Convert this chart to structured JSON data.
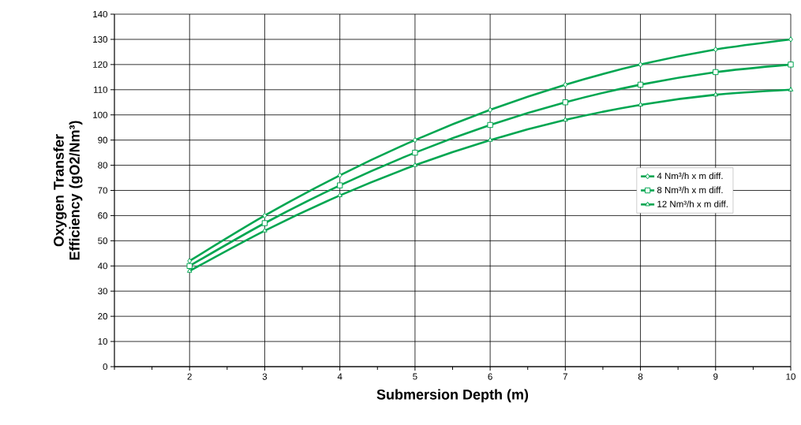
{
  "chart_data": {
    "type": "line",
    "xlabel": "Submersion Depth (m)",
    "ylabel": "Oxygen Transfer Efficiency (gO2/Nm³)",
    "x": [
      2,
      3,
      4,
      5,
      6,
      7,
      8,
      9,
      10
    ],
    "series": [
      {
        "name": "4 Nm³/h x m diff.",
        "color": "#00a651",
        "marker": "diamond",
        "values": [
          42,
          60,
          76,
          90,
          102,
          112,
          120,
          126,
          130
        ]
      },
      {
        "name": "8 Nm³/h x m diff.",
        "color": "#00a651",
        "marker": "square",
        "values": [
          40,
          57,
          72,
          85,
          96,
          105,
          112,
          117,
          120
        ]
      },
      {
        "name": "12 Nm³/h x m diff.",
        "color": "#00a651",
        "marker": "triangle",
        "values": [
          38,
          54,
          68,
          80,
          90,
          98,
          104,
          108,
          110
        ]
      }
    ],
    "xlim": [
      1,
      10
    ],
    "xticks": [
      {
        "value": 1,
        "label": null
      },
      {
        "value": 1.5,
        "label": null
      },
      2,
      {
        "value": 2.5,
        "label": null
      },
      3,
      {
        "value": 3.5,
        "label": null
      },
      4,
      {
        "value": 4.5,
        "label": null
      },
      5,
      {
        "value": 5.5,
        "label": null
      },
      6,
      {
        "value": 6.5,
        "label": null
      },
      7,
      {
        "value": 7.5,
        "label": null
      },
      8,
      {
        "value": 8.5,
        "label": null
      },
      9,
      {
        "value": 9.5,
        "label": null
      },
      10
    ],
    "ylim": [
      0,
      140
    ],
    "yticks": [
      0,
      10,
      20,
      30,
      40,
      50,
      60,
      70,
      80,
      90,
      100,
      110,
      120,
      130,
      140
    ],
    "grid": true,
    "legend": "right",
    "line_style": "solid"
  }
}
